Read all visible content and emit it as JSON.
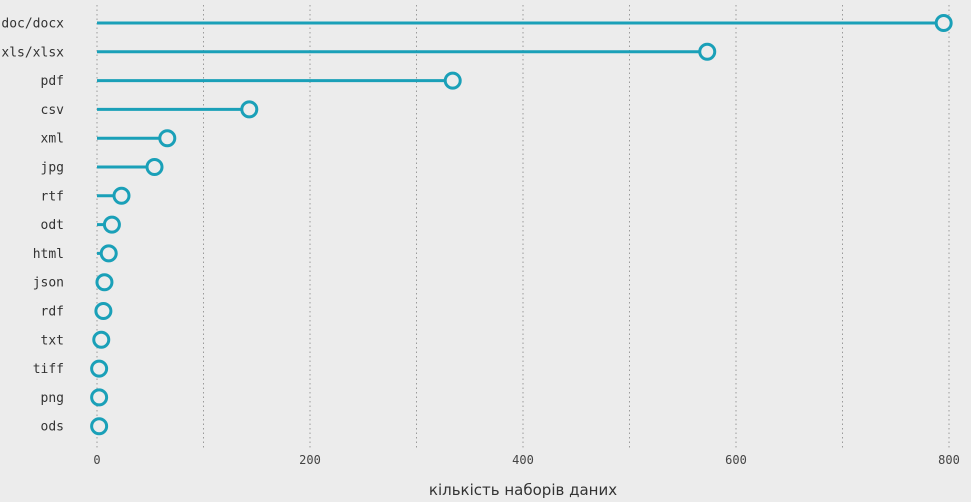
{
  "chart_data": {
    "type": "lollipop",
    "categories": [
      "doc/docx",
      "xls/xlsx",
      "pdf",
      "csv",
      "xml",
      "jpg",
      "rtf",
      "odt",
      "html",
      "json",
      "rdf",
      "txt",
      "tiff",
      "png",
      "ods"
    ],
    "values": [
      795,
      573,
      334,
      143,
      66,
      54,
      23,
      14,
      11,
      7,
      6,
      4,
      2,
      2,
      2
    ],
    "xlabel": "кількість наборів даних",
    "ylabel": "",
    "xlim": [
      0,
      800
    ],
    "x_ticks": [
      "0",
      "200",
      "400",
      "600",
      "800"
    ],
    "grid": "vertical dotted",
    "colors": {
      "stem": "#1aa0b8",
      "marker_stroke": "#1aa0b8",
      "marker_fill": "#ececec",
      "background": "#ececec",
      "grid": "#9a9a9a"
    }
  }
}
